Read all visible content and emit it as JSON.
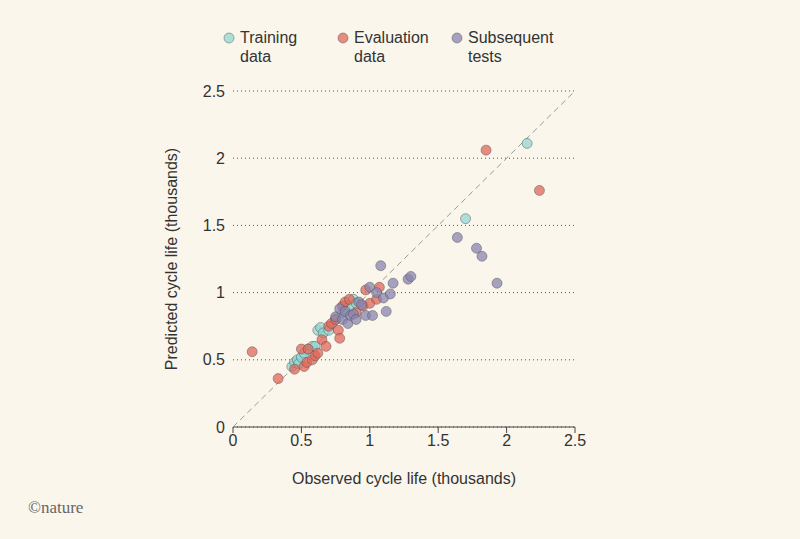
{
  "chart_data": {
    "type": "scatter",
    "x_label": "Observed cycle life (thousands)",
    "y_label": "Predicted cycle life (thousands)",
    "source": "©nature",
    "xlim": [
      0,
      2.5
    ],
    "ylim": [
      0,
      2.5
    ],
    "xticks": [
      0,
      0.5,
      1,
      1.5,
      2,
      2.5
    ],
    "yticks": [
      0,
      0.5,
      1,
      1.5,
      2,
      2.5
    ],
    "grid": true,
    "legend": "top",
    "series": [
      {
        "name": "Training data",
        "color": "#93d5d0",
        "marker": "circle",
        "x": [
          0.43,
          0.45,
          0.47,
          0.48,
          0.5,
          0.52,
          0.55,
          0.58,
          0.6,
          0.62,
          0.64,
          0.66,
          0.7,
          0.75,
          0.8,
          0.82,
          0.85,
          0.88,
          0.9,
          1.7,
          2.15
        ],
        "values": [
          0.45,
          0.48,
          0.5,
          0.47,
          0.52,
          0.55,
          0.58,
          0.6,
          0.6,
          0.72,
          0.74,
          0.7,
          0.72,
          0.8,
          0.85,
          0.88,
          0.9,
          0.95,
          0.92,
          1.55,
          2.11
        ]
      },
      {
        "name": "Evaluation data",
        "color": "#e0675a",
        "marker": "circle",
        "x": [
          0.14,
          0.33,
          0.45,
          0.5,
          0.52,
          0.54,
          0.55,
          0.58,
          0.6,
          0.62,
          0.65,
          0.68,
          0.7,
          0.72,
          0.75,
          0.77,
          0.78,
          0.8,
          0.82,
          0.85,
          0.9,
          0.95,
          0.97,
          1.0,
          1.05,
          1.07,
          1.85,
          2.24
        ],
        "values": [
          0.56,
          0.36,
          0.43,
          0.58,
          0.45,
          0.48,
          0.58,
          0.5,
          0.53,
          0.55,
          0.65,
          0.6,
          0.75,
          0.77,
          0.8,
          0.72,
          0.66,
          0.9,
          0.93,
          0.95,
          0.85,
          0.9,
          1.02,
          0.92,
          0.95,
          1.04,
          2.06,
          1.76
        ]
      },
      {
        "name": "Subsequent tests",
        "color": "#8a84b0",
        "marker": "circle",
        "x": [
          0.75,
          0.78,
          0.8,
          0.82,
          0.84,
          0.86,
          0.88,
          0.9,
          0.92,
          0.94,
          0.97,
          1.0,
          1.02,
          1.05,
          1.08,
          1.1,
          1.12,
          1.15,
          1.17,
          1.28,
          1.3,
          1.64,
          1.78,
          1.82,
          1.93
        ],
        "values": [
          0.82,
          0.88,
          0.8,
          0.86,
          0.77,
          0.83,
          0.84,
          0.8,
          0.93,
          0.91,
          0.83,
          1.04,
          0.83,
          1.0,
          1.2,
          0.96,
          0.86,
          0.99,
          1.07,
          1.1,
          1.12,
          1.41,
          1.33,
          1.27,
          1.07
        ]
      },
      {
        "type": "line",
        "color": "#9a9a9a",
        "line_style": "dashed",
        "x": [
          0,
          2.5
        ],
        "values": [
          0,
          2.5
        ]
      }
    ]
  }
}
